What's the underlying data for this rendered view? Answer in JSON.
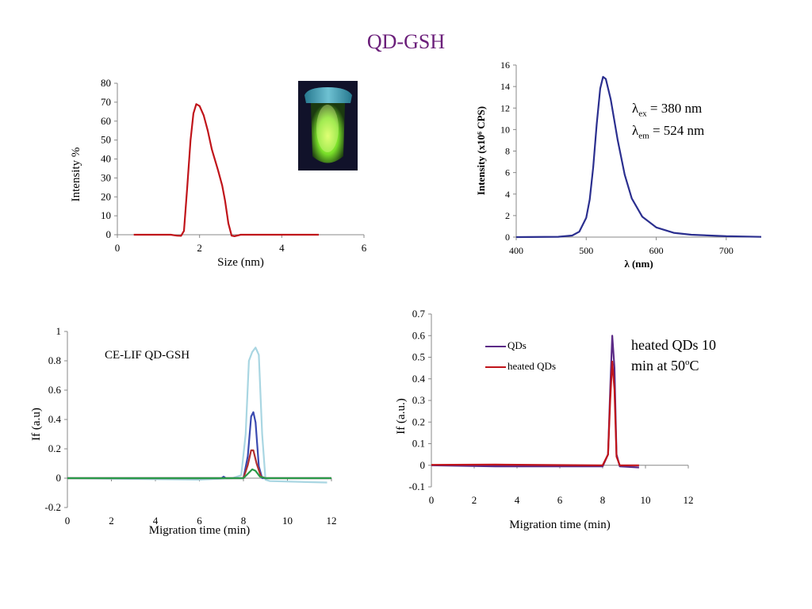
{
  "page": {
    "title": "QD-GSH",
    "vial_image": "glowing-green-vial"
  },
  "chart_data": [
    {
      "id": "dls",
      "type": "line",
      "xlabel": "Size (nm)",
      "ylabel": "Intensity  %",
      "xlim": [
        0,
        6
      ],
      "ylim": [
        0,
        80
      ],
      "xticks": [
        0,
        2,
        4,
        6
      ],
      "yticks": [
        0,
        10,
        20,
        30,
        40,
        50,
        60,
        70,
        80
      ],
      "series": [
        {
          "color": "#c0141a",
          "points": [
            [
              0.4,
              0
            ],
            [
              1.3,
              0
            ],
            [
              1.45,
              -0.5
            ],
            [
              1.55,
              -0.6
            ],
            [
              1.62,
              2
            ],
            [
              1.7,
              25
            ],
            [
              1.78,
              50
            ],
            [
              1.85,
              64
            ],
            [
              1.92,
              69
            ],
            [
              2.0,
              68
            ],
            [
              2.1,
              63
            ],
            [
              2.2,
              55
            ],
            [
              2.3,
              45
            ],
            [
              2.45,
              34
            ],
            [
              2.55,
              26
            ],
            [
              2.62,
              18
            ],
            [
              2.7,
              6
            ],
            [
              2.78,
              -0.5
            ],
            [
              2.85,
              -0.8
            ],
            [
              3.0,
              0
            ],
            [
              4.9,
              0
            ]
          ]
        }
      ]
    },
    {
      "id": "fluorescence",
      "type": "line",
      "xlabel": "λ (nm)",
      "ylabel": "Intensity (x10⁶ CPS)",
      "xlim": [
        400,
        750
      ],
      "ylim": [
        0,
        16
      ],
      "xticks": [
        400,
        500,
        600,
        700
      ],
      "yticks": [
        0,
        2,
        4,
        6,
        8,
        10,
        12,
        14,
        16
      ],
      "annotation": [
        "λex = 380 nm",
        "λem = 524 nm"
      ],
      "series": [
        {
          "color": "#2b2f8f",
          "points": [
            [
              400,
              0
            ],
            [
              460,
              0.03
            ],
            [
              480,
              0.15
            ],
            [
              490,
              0.5
            ],
            [
              500,
              1.8
            ],
            [
              505,
              3.5
            ],
            [
              510,
              6.5
            ],
            [
              515,
              10.5
            ],
            [
              520,
              13.8
            ],
            [
              524,
              14.9
            ],
            [
              528,
              14.7
            ],
            [
              535,
              12.8
            ],
            [
              545,
              9.0
            ],
            [
              555,
              5.8
            ],
            [
              565,
              3.6
            ],
            [
              580,
              1.9
            ],
            [
              600,
              0.9
            ],
            [
              625,
              0.4
            ],
            [
              650,
              0.22
            ],
            [
              700,
              0.08
            ],
            [
              750,
              0.02
            ]
          ]
        }
      ]
    },
    {
      "id": "ce-lif",
      "type": "line",
      "xlabel": "Migration time (min)",
      "ylabel": "If (a.u)",
      "xlim": [
        0,
        12
      ],
      "ylim": [
        -0.2,
        1
      ],
      "xticks": [
        0,
        2,
        4,
        6,
        8,
        10,
        12
      ],
      "yticks": [
        -0.2,
        0,
        0.2,
        0.4,
        0.6,
        0.8,
        1
      ],
      "annotation": "CE-LIF QD-GSH",
      "series": [
        {
          "color": "#a9d6e2",
          "points": [
            [
              0,
              0
            ],
            [
              6,
              -0.01
            ],
            [
              7.5,
              0
            ],
            [
              7.9,
              0.02
            ],
            [
              8.1,
              0.3
            ],
            [
              8.25,
              0.8
            ],
            [
              8.4,
              0.86
            ],
            [
              8.55,
              0.89
            ],
            [
              8.7,
              0.84
            ],
            [
              8.85,
              0.3
            ],
            [
              9.0,
              -0.01
            ],
            [
              9.2,
              -0.02
            ],
            [
              11.8,
              -0.03
            ]
          ]
        },
        {
          "color": "#3a4ab0",
          "points": [
            [
              0,
              0
            ],
            [
              7.0,
              0
            ],
            [
              7.1,
              0.01
            ],
            [
              7.2,
              0
            ],
            [
              8.0,
              0
            ],
            [
              8.2,
              0.15
            ],
            [
              8.35,
              0.42
            ],
            [
              8.45,
              0.45
            ],
            [
              8.55,
              0.38
            ],
            [
              8.7,
              0.08
            ],
            [
              8.85,
              0
            ],
            [
              12,
              0
            ]
          ]
        },
        {
          "color": "#b03030",
          "points": [
            [
              0,
              0
            ],
            [
              8.0,
              0
            ],
            [
              8.2,
              0.09
            ],
            [
              8.35,
              0.19
            ],
            [
              8.45,
              0.19
            ],
            [
              8.6,
              0.1
            ],
            [
              8.8,
              0.01
            ],
            [
              9.0,
              0
            ],
            [
              12,
              0
            ]
          ]
        },
        {
          "color": "#2a9a48",
          "points": [
            [
              0,
              0
            ],
            [
              8.0,
              0
            ],
            [
              8.2,
              0.03
            ],
            [
              8.4,
              0.06
            ],
            [
              8.55,
              0.05
            ],
            [
              8.75,
              0.01
            ],
            [
              9.0,
              0
            ],
            [
              12,
              0
            ]
          ]
        }
      ]
    },
    {
      "id": "ce-heated",
      "type": "line",
      "xlabel": "Migration time (min)",
      "ylabel": "If (a.u.)",
      "xlim": [
        0,
        12
      ],
      "ylim": [
        -0.1,
        0.7
      ],
      "xticks": [
        0,
        2,
        4,
        6,
        8,
        10,
        12
      ],
      "yticks": [
        -0.1,
        0,
        0.1,
        0.2,
        0.3,
        0.4,
        0.5,
        0.6,
        0.7
      ],
      "annotation": "heated QDs 10 min at 50oC",
      "series": [
        {
          "name": "QDs",
          "color": "#5b2a86",
          "points": [
            [
              0,
              0
            ],
            [
              3,
              -0.005
            ],
            [
              6,
              -0.005
            ],
            [
              8.0,
              -0.005
            ],
            [
              8.25,
              0.05
            ],
            [
              8.35,
              0.35
            ],
            [
              8.45,
              0.6
            ],
            [
              8.55,
              0.45
            ],
            [
              8.65,
              0.05
            ],
            [
              8.8,
              -0.005
            ],
            [
              9.7,
              -0.01
            ]
          ]
        },
        {
          "name": "heated QDs",
          "color": "#c0141a",
          "points": [
            [
              0,
              0.002
            ],
            [
              3,
              0.003
            ],
            [
              6,
              0.001
            ],
            [
              8.0,
              0
            ],
            [
              8.25,
              0.05
            ],
            [
              8.35,
              0.3
            ],
            [
              8.45,
              0.48
            ],
            [
              8.55,
              0.35
            ],
            [
              8.65,
              0.04
            ],
            [
              8.8,
              0
            ],
            [
              9.7,
              0
            ]
          ]
        }
      ]
    }
  ]
}
